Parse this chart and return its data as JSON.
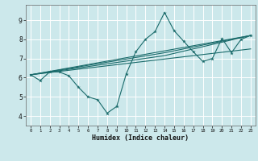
{
  "xlabel": "Humidex (Indice chaleur)",
  "ylabel": "",
  "background_color": "#cce8eb",
  "grid_color": "#ffffff",
  "line_color": "#1a6b6b",
  "xlim": [
    -0.5,
    23.5
  ],
  "ylim": [
    3.5,
    9.8
  ],
  "xticks": [
    0,
    1,
    2,
    3,
    4,
    5,
    6,
    7,
    8,
    9,
    10,
    11,
    12,
    13,
    14,
    15,
    16,
    17,
    18,
    19,
    20,
    21,
    22,
    23
  ],
  "yticks": [
    4,
    5,
    6,
    7,
    8,
    9
  ],
  "line1_x": [
    0,
    1,
    2,
    3,
    4,
    5,
    6,
    7,
    8,
    9,
    10,
    11,
    12,
    13,
    14,
    15,
    16,
    17,
    18,
    19,
    20,
    21,
    22,
    23
  ],
  "line1_y": [
    6.15,
    5.85,
    6.3,
    6.3,
    6.1,
    5.5,
    5.0,
    4.85,
    4.15,
    4.5,
    6.2,
    7.35,
    8.0,
    8.4,
    9.4,
    8.45,
    7.9,
    7.35,
    6.85,
    7.0,
    8.05,
    7.3,
    8.0,
    8.2
  ],
  "line2_x": [
    0,
    23
  ],
  "line2_y": [
    6.15,
    8.2
  ],
  "line3_x": [
    0,
    23
  ],
  "line3_y": [
    6.15,
    7.5
  ],
  "line4_x": [
    0,
    14,
    23
  ],
  "line4_y": [
    6.15,
    7.15,
    8.2
  ],
  "line5_x": [
    0,
    14,
    23
  ],
  "line5_y": [
    6.15,
    7.3,
    8.2
  ]
}
